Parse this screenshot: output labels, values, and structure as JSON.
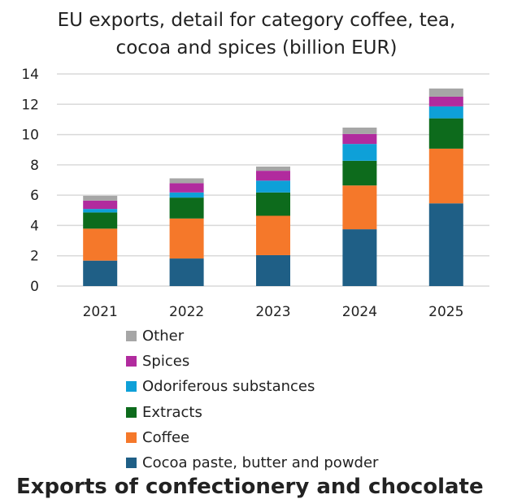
{
  "chart_data": {
    "type": "bar",
    "stacked": true,
    "title": "EU exports, detail for category coffee, tea, cocoa and spices (billion EUR)",
    "title_lines": [
      "EU exports, detail for category coffee, tea,",
      "cocoa and spices (billion EUR)"
    ],
    "categories": [
      "2021",
      "2022",
      "2023",
      "2024",
      "2025"
    ],
    "ylim": [
      0,
      14
    ],
    "yticks": [
      0,
      2,
      4,
      6,
      8,
      10,
      12,
      14
    ],
    "grid": true,
    "legend_position": "bottom",
    "series": [
      {
        "name": "Cocoa paste, butter and powder",
        "color": "#1f5f86",
        "values": [
          1.68,
          1.82,
          2.04,
          3.75,
          5.46
        ]
      },
      {
        "name": "Coffee",
        "color": "#f5782a",
        "values": [
          2.11,
          2.64,
          2.6,
          2.89,
          3.61
        ]
      },
      {
        "name": "Extracts",
        "color": "#0d6b1c",
        "values": [
          1.07,
          1.38,
          1.54,
          1.63,
          2.0
        ]
      },
      {
        "name": "Odoriferous substances",
        "color": "#0ea0d8",
        "values": [
          0.23,
          0.34,
          0.78,
          1.11,
          0.79
        ]
      },
      {
        "name": "Spices",
        "color": "#b12b9e",
        "values": [
          0.55,
          0.61,
          0.65,
          0.66,
          0.64
        ]
      },
      {
        "name": "Other",
        "color": "#a6a6a6",
        "values": [
          0.32,
          0.32,
          0.28,
          0.42,
          0.54
        ]
      }
    ]
  },
  "footer": {
    "text": "Exports of confectionery and chocolate"
  }
}
